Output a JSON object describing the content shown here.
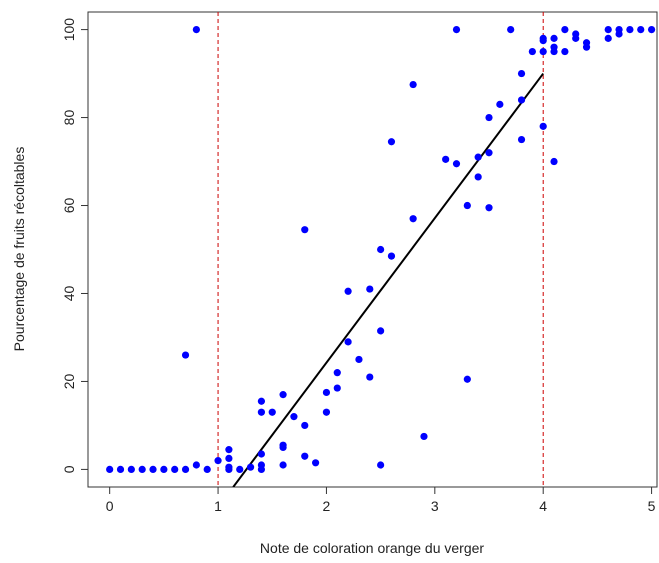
{
  "chart_data": {
    "type": "scatter",
    "title": "",
    "xlabel": "Note de coloration orange du verger",
    "ylabel": "Pourcentage de fruits récoltables",
    "xlim": [
      -0.2,
      5.05
    ],
    "ylim": [
      -4,
      104
    ],
    "xticks": [
      "0",
      "1",
      "2",
      "3",
      "4",
      "5"
    ],
    "yticks": [
      "0",
      "20",
      "40",
      "60",
      "80",
      "100"
    ],
    "grid": false,
    "point_color": "#0000ff",
    "fit_line": {
      "color": "#000000",
      "x": [
        1.14,
        4.0
      ],
      "y": [
        -4,
        90
      ]
    },
    "reference_lines": {
      "color": "#cc0000",
      "style": "dashed",
      "x": [
        1,
        4
      ]
    },
    "points": [
      [
        0,
        0
      ],
      [
        0.1,
        0
      ],
      [
        0.2,
        0
      ],
      [
        0.3,
        0
      ],
      [
        0.4,
        0
      ],
      [
        0.5,
        0
      ],
      [
        0.6,
        0
      ],
      [
        0.7,
        0
      ],
      [
        0.7,
        26
      ],
      [
        0.8,
        1
      ],
      [
        0.8,
        100
      ],
      [
        0.9,
        0
      ],
      [
        1.0,
        2
      ],
      [
        1.1,
        4.5
      ],
      [
        1.1,
        2.5
      ],
      [
        1.1,
        0.5
      ],
      [
        1.1,
        0
      ],
      [
        1.2,
        0
      ],
      [
        1.3,
        0.5
      ],
      [
        1.4,
        15.5
      ],
      [
        1.4,
        13
      ],
      [
        1.4,
        3.5
      ],
      [
        1.4,
        1
      ],
      [
        1.4,
        0
      ],
      [
        1.5,
        13
      ],
      [
        1.6,
        17
      ],
      [
        1.6,
        5.5
      ],
      [
        1.6,
        5
      ],
      [
        1.6,
        1
      ],
      [
        1.7,
        12
      ],
      [
        1.8,
        54.5
      ],
      [
        1.8,
        10
      ],
      [
        1.8,
        3
      ],
      [
        1.9,
        1.5
      ],
      [
        2.0,
        17.5
      ],
      [
        2.0,
        13
      ],
      [
        2.1,
        22
      ],
      [
        2.1,
        18.5
      ],
      [
        2.2,
        40.5
      ],
      [
        2.2,
        29
      ],
      [
        2.3,
        25
      ],
      [
        2.4,
        41
      ],
      [
        2.4,
        21
      ],
      [
        2.5,
        50
      ],
      [
        2.5,
        31.5
      ],
      [
        2.5,
        1
      ],
      [
        2.6,
        74.5
      ],
      [
        2.6,
        48.5
      ],
      [
        2.8,
        87.5
      ],
      [
        2.8,
        57
      ],
      [
        2.9,
        7.5
      ],
      [
        3.1,
        70.5
      ],
      [
        3.2,
        100
      ],
      [
        3.2,
        69.5
      ],
      [
        3.3,
        60
      ],
      [
        3.3,
        20.5
      ],
      [
        3.4,
        71
      ],
      [
        3.4,
        66.5
      ],
      [
        3.5,
        80
      ],
      [
        3.5,
        72
      ],
      [
        3.5,
        59.5
      ],
      [
        3.6,
        83
      ],
      [
        3.7,
        100
      ],
      [
        3.8,
        90
      ],
      [
        3.8,
        84
      ],
      [
        3.8,
        75
      ],
      [
        3.9,
        95
      ],
      [
        4.0,
        98
      ],
      [
        4.0,
        97.5
      ],
      [
        4.0,
        95
      ],
      [
        4.0,
        78
      ],
      [
        4.1,
        98
      ],
      [
        4.1,
        96
      ],
      [
        4.1,
        95
      ],
      [
        4.1,
        70
      ],
      [
        4.2,
        100
      ],
      [
        4.2,
        95
      ],
      [
        4.3,
        99
      ],
      [
        4.3,
        98
      ],
      [
        4.4,
        97
      ],
      [
        4.4,
        96
      ],
      [
        4.6,
        100
      ],
      [
        4.6,
        98
      ],
      [
        4.7,
        100
      ],
      [
        4.7,
        99
      ],
      [
        4.8,
        100
      ],
      [
        4.9,
        100
      ],
      [
        5.0,
        100
      ]
    ]
  }
}
